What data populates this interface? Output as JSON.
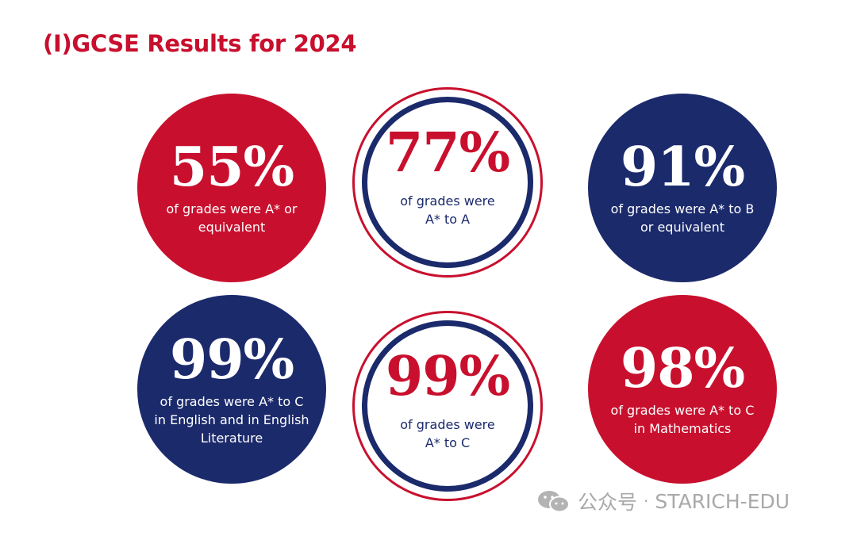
{
  "title": "(I)GCSE Results for 2024",
  "colors": {
    "red": "#c8102e",
    "navy": "#1b2a6b"
  },
  "stats": [
    {
      "value": "55%",
      "text": "of grades were A* or equivalent",
      "style": "red"
    },
    {
      "value": "77%",
      "text": "of grades were A* to A",
      "style": "ring"
    },
    {
      "value": "91%",
      "text": "of grades were A* to B or equivalent",
      "style": "navy"
    },
    {
      "value": "99%",
      "text": "of grades were A* to C in English and in English Literature",
      "style": "navy"
    },
    {
      "value": "99%",
      "text": "of grades were A* to C",
      "style": "ring"
    },
    {
      "value": "98%",
      "text": "of grades were A* to C in Mathematics",
      "style": "red"
    }
  ],
  "watermark": {
    "icon": "wechat-icon",
    "label": "公众号",
    "separator": "·",
    "account": "STARICH-EDU"
  }
}
